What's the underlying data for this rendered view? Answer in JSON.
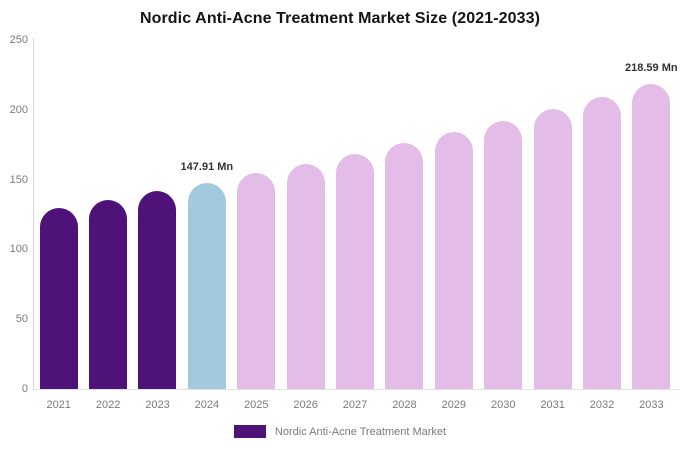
{
  "title": "Nordic Anti-Acne Treatment Market Size (2021-2033)",
  "colors": {
    "historical": "#4E1278",
    "current": "#A3C9DE",
    "forecast": "#E4BCE8",
    "axis_line": "#d6d6d6",
    "tick_text": "#7a7a7a",
    "title_text": "#141414",
    "value_label_text": "#333333"
  },
  "chart_data": {
    "type": "bar",
    "title": "Nordic Anti-Acne Treatment Market Size (2021-2033)",
    "categories": [
      "2021",
      "2022",
      "2023",
      "2024",
      "2025",
      "2026",
      "2027",
      "2028",
      "2029",
      "2030",
      "2031",
      "2032",
      "2033"
    ],
    "values": [
      129.9,
      135.6,
      141.6,
      147.91,
      154.5,
      161.3,
      168.5,
      176.0,
      183.8,
      191.9,
      200.4,
      209.4,
      218.59
    ],
    "color_roles": [
      "historical",
      "historical",
      "historical",
      "current",
      "forecast",
      "forecast",
      "forecast",
      "forecast",
      "forecast",
      "forecast",
      "forecast",
      "forecast",
      "forecast"
    ],
    "value_labels": {
      "2024": "147.91 Mn",
      "2033": "218.59 Mn"
    },
    "unit": "Mn",
    "xlabel": "",
    "ylabel": "",
    "ylim": [
      0,
      250
    ],
    "yticks": [
      0,
      50,
      100,
      150,
      200,
      250
    ],
    "grid": false,
    "legend": {
      "position": "bottom",
      "entries": [
        {
          "label": "Nordic Anti-Acne Treatment Market",
          "color": "#4E1278"
        }
      ]
    }
  }
}
